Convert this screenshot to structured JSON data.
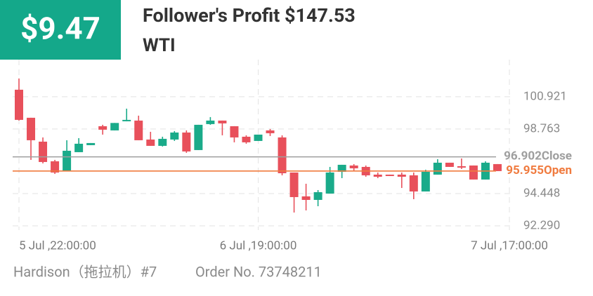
{
  "header": {
    "profit": "$9.47",
    "title": "Follower's Profit $147.53",
    "symbol": "WTI"
  },
  "chart_data": {
    "type": "candlestick",
    "x": [
      0,
      1,
      2,
      3,
      4,
      5,
      6,
      7,
      8,
      9,
      10,
      11,
      12,
      13,
      14,
      15,
      16,
      17,
      18,
      19,
      20,
      21,
      22,
      23,
      24,
      25,
      26,
      27,
      28,
      29,
      30,
      31,
      32,
      33,
      34,
      35,
      36,
      37,
      38,
      39,
      40
    ],
    "open": [
      101.389,
      99.514,
      97.918,
      96.605,
      95.949,
      97.215,
      97.684,
      98.95,
      98.669,
      99.279,
      99.326,
      98.059,
      97.637,
      98.059,
      98.528,
      97.356,
      99.091,
      99.326,
      98.95,
      98.247,
      97.965,
      98.669,
      98.2,
      95.855,
      94.26,
      94.025,
      94.448,
      95.902,
      96.324,
      96.23,
      95.714,
      95.714,
      95.714,
      95.667,
      94.588,
      95.714,
      96.511,
      96.277,
      96.324,
      95.386,
      96.418
    ],
    "high": [
      102.14,
      99.514,
      98.2,
      96.699,
      98.012,
      98.153,
      97.825,
      99.044,
      99.166,
      100.123,
      99.655,
      98.575,
      98.247,
      98.623,
      98.67,
      99.044,
      99.56,
      99.326,
      98.95,
      98.341,
      98.388,
      98.763,
      98.341,
      95.855,
      95.104,
      94.682,
      96.23,
      96.371,
      96.418,
      96.324,
      95.855,
      95.714,
      95.855,
      95.855,
      96.042,
      96.746,
      96.511,
      96.793,
      96.324,
      96.605,
      96.418
    ],
    "low": [
      99.326,
      96.699,
      96.465,
      95.761,
      95.949,
      97.215,
      97.684,
      98.388,
      98.669,
      99.279,
      98.012,
      97.637,
      97.591,
      97.965,
      97.168,
      97.356,
      99.044,
      98.341,
      97.872,
      97.778,
      97.965,
      98.294,
      95.667,
      93.181,
      93.322,
      93.603,
      94.448,
      95.479,
      95.949,
      95.573,
      95.479,
      95.62,
      94.823,
      94.072,
      94.588,
      95.714,
      96.23,
      96.089,
      95.386,
      95.386,
      95.949
    ],
    "close": [
      99.373,
      98.012,
      96.558,
      95.855,
      97.309,
      97.778,
      97.825,
      98.716,
      99.166,
      99.373,
      98.012,
      97.637,
      98.106,
      98.528,
      97.262,
      99.044,
      99.326,
      99.138,
      98.2,
      97.872,
      98.388,
      98.481,
      95.808,
      94.213,
      94.025,
      94.541,
      95.855,
      96.371,
      96.136,
      95.667,
      95.573,
      95.62,
      95.573,
      94.588,
      95.902,
      96.511,
      96.23,
      96.183,
      95.386,
      96.511,
      95.949
    ],
    "up_color": "#1aab8a",
    "down_color": "#e8505b",
    "xlim": [
      0,
      41
    ],
    "xticks": [
      {
        "value": 0,
        "label": "5 Jul ,22:00:00"
      },
      {
        "value": 20,
        "label": "6 Jul ,19:00:00"
      },
      {
        "value": 41,
        "label": "7 Jul ,17:00:00"
      }
    ],
    "ylim": [
      92.29,
      103.4
    ],
    "yticks": [
      92.29,
      94.448,
      98.763,
      100.921
    ],
    "ytick_labels": [
      "92.290",
      "94.448",
      "98.763",
      "100.921"
    ],
    "grid": true,
    "reference_lines": [
      {
        "name": "Close",
        "value": 96.902,
        "color": "#9e9e9e"
      },
      {
        "name": "Open",
        "value": 95.955,
        "color": "#f07b3f"
      }
    ]
  },
  "footer": {
    "trader": "Hardison（拖拉机）#7",
    "order": "Order No. 73748211"
  }
}
